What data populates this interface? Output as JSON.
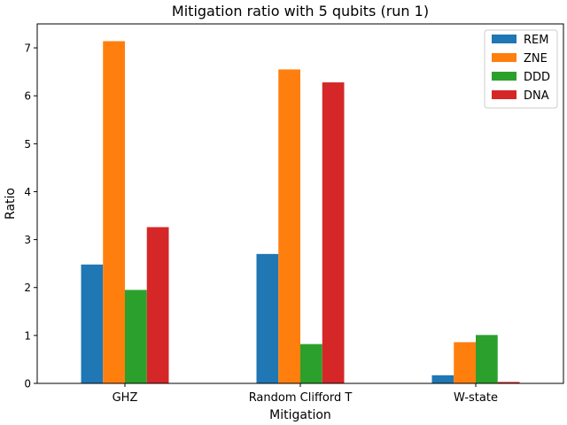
{
  "chart_data": {
    "type": "bar",
    "title": "Mitigation ratio with 5 qubits (run 1)",
    "xlabel": "Mitigation",
    "ylabel": "Ratio",
    "categories": [
      "GHZ",
      "Random Clifford T",
      "W-state"
    ],
    "series": [
      {
        "name": "REM",
        "color": "#1f77b4",
        "values": [
          2.48,
          2.7,
          0.17
        ]
      },
      {
        "name": "ZNE",
        "color": "#ff7f0e",
        "values": [
          7.14,
          6.55,
          0.86
        ]
      },
      {
        "name": "DDD",
        "color": "#2ca02c",
        "values": [
          1.95,
          0.82,
          1.01
        ]
      },
      {
        "name": "DNA",
        "color": "#d62728",
        "values": [
          3.26,
          6.28,
          0.03
        ]
      }
    ],
    "ylim": [
      0,
      7.5
    ],
    "yticks": [
      0,
      1,
      2,
      3,
      4,
      5,
      6,
      7
    ],
    "grid": false,
    "legend_position": "top-right"
  }
}
